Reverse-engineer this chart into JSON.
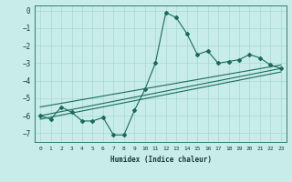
{
  "xlabel": "Humidex (Indice chaleur)",
  "ylabel": "",
  "bg_color": "#c8ecea",
  "grid_color": "#a8d8d4",
  "line_color": "#1a6b5a",
  "xlim": [
    -0.5,
    23.5
  ],
  "ylim": [
    -7.5,
    0.3
  ],
  "xticks": [
    0,
    1,
    2,
    3,
    4,
    5,
    6,
    7,
    8,
    9,
    10,
    11,
    12,
    13,
    14,
    15,
    16,
    17,
    18,
    19,
    20,
    21,
    22,
    23
  ],
  "yticks": [
    0,
    -1,
    -2,
    -3,
    -4,
    -5,
    -6,
    -7
  ],
  "scatter_x": [
    0,
    1,
    2,
    3,
    4,
    5,
    6,
    7,
    8,
    9,
    10,
    11,
    12,
    13,
    14,
    15,
    16,
    17,
    18,
    19,
    20,
    21,
    22,
    23
  ],
  "scatter_y": [
    -6.0,
    -6.2,
    -5.5,
    -5.8,
    -6.3,
    -6.3,
    -6.1,
    -7.1,
    -7.1,
    -5.7,
    -4.5,
    -3.0,
    -0.1,
    -0.4,
    -1.3,
    -2.5,
    -2.3,
    -3.0,
    -2.9,
    -2.8,
    -2.5,
    -2.7,
    -3.1,
    -3.3
  ],
  "line1_x": [
    0,
    23
  ],
  "line1_y": [
    -6.0,
    -3.3
  ],
  "line2_x": [
    0,
    23
  ],
  "line2_y": [
    -5.5,
    -3.1
  ],
  "line3_x": [
    0,
    23
  ],
  "line3_y": [
    -6.2,
    -3.5
  ]
}
